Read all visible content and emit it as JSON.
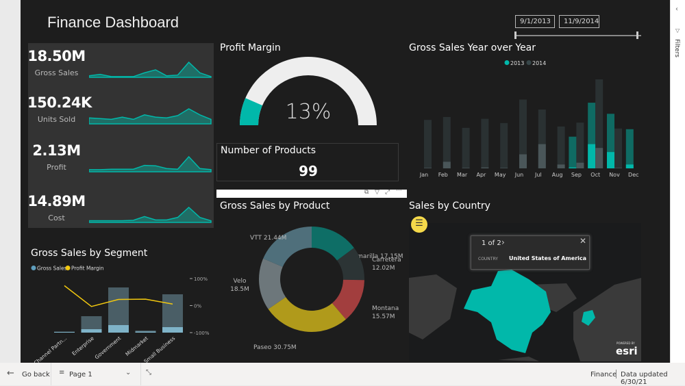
{
  "dashboard": {
    "title": "Finance Dashboard"
  },
  "date_slicer": {
    "start": "9/1/2013",
    "end": "11/9/2014"
  },
  "kpis": [
    {
      "value": "18.50M",
      "label": "Gross Sales",
      "trend": [
        1,
        2,
        0.5,
        0.5,
        0.5,
        3,
        5,
        1,
        1.5,
        10,
        3,
        0.5
      ]
    },
    {
      "value": "150.24K",
      "label": "Units Sold",
      "trend": [
        4,
        3.5,
        3,
        4.5,
        3,
        6,
        4.5,
        4,
        5.5,
        10,
        6,
        3
      ]
    },
    {
      "value": "2.13M",
      "label": "Profit",
      "trend": [
        1,
        1,
        1.2,
        1.2,
        1.2,
        3,
        2.8,
        1.5,
        1.2,
        7,
        1.5,
        1
      ]
    },
    {
      "value": "14.89M",
      "label": "Cost",
      "trend": [
        1,
        1,
        1,
        1,
        1.3,
        3.5,
        1.5,
        1.5,
        3,
        9,
        3,
        1
      ]
    }
  ],
  "profit_margin": {
    "title": "Profit Margin",
    "value": "13%",
    "fraction": 0.13
  },
  "products": {
    "title": "Number of Products",
    "value": "99"
  },
  "colors": {
    "accent": "#01b8aa",
    "yellow": "#f2c80f",
    "background": "#1d1d1d"
  },
  "chart_data": [
    {
      "type": "bar",
      "title": "Gross Sales Year over Year",
      "categories": [
        "Jan",
        "Feb",
        "Mar",
        "Apr",
        "May",
        "Jun",
        "Jul",
        "Aug",
        "Sep",
        "Oct",
        "Nov",
        "Dec"
      ],
      "series": [
        {
          "name": "2013",
          "values": [
            0,
            0,
            0,
            0,
            0,
            0,
            0,
            0,
            140,
            290,
            241,
            173
          ],
          "highlighted": [
            0,
            0,
            0,
            0,
            0,
            0,
            0,
            0,
            4,
            107,
            72,
            17
          ],
          "color": "#01b8aa"
        },
        {
          "name": "2014",
          "values": [
            214,
            227,
            179,
            219,
            200,
            304,
            260,
            185,
            202,
            393,
            176,
            0
          ],
          "highlighted": [
            2,
            29,
            2,
            4,
            2,
            62,
            107,
            17,
            25,
            90,
            2,
            0
          ],
          "color": "#374649"
        }
      ],
      "legend": "top-center",
      "grid": false
    },
    {
      "type": "bar+line",
      "title": "Gross Sales by Segment",
      "categories": [
        "Channel Partn...",
        "Enterprise",
        "Government",
        "Midmarket",
        "Small Business"
      ],
      "series": [
        {
          "name": "Gross Sales",
          "values": [
            1.5,
            24,
            66,
            3,
            56
          ],
          "highlighted": [
            1,
            5,
            11,
            1.5,
            8
          ],
          "color": "#5f9ebd"
        },
        {
          "name": "Profit Margin",
          "values": [
            75,
            -2,
            24,
            25,
            7
          ],
          "color": "#f2c80f",
          "axis": "right"
        }
      ],
      "y2_ticks": [
        "100%",
        "0%",
        "-100%"
      ],
      "y2lim": [
        -100,
        100
      ],
      "legend": "top-left"
    },
    {
      "type": "donut",
      "title": "Gross Sales by Product",
      "slices": [
        {
          "name": "Amarilla",
          "value": 17.15,
          "label": "17.15M",
          "color": "#0e6e66"
        },
        {
          "name": "Carretera",
          "value": 12.02,
          "label": "12.02M",
          "color": "#2c3435"
        },
        {
          "name": "Montana",
          "value": 15.57,
          "label": "15.57M",
          "color": "#a23e3e"
        },
        {
          "name": "Paseo",
          "value": 30.75,
          "label": "30.75M",
          "color": "#b09a1b"
        },
        {
          "name": "Velo",
          "value": 18.5,
          "label": "18.5M",
          "color": "#6d777b"
        },
        {
          "name": "VTT",
          "value": 21.44,
          "label": "21.44M",
          "color": "#4f6f7b"
        }
      ]
    }
  ],
  "map": {
    "title": "Sales by Country",
    "popup_pager": "1 of 2",
    "popup_field": "COUNTRY",
    "popup_value": "United States of America",
    "brand": "esri",
    "brand_small": "POWERED BY"
  },
  "filters_pane": {
    "label": "Filters"
  },
  "bottom": {
    "go_back": "Go back",
    "page": "Page 1",
    "workspace": "Finance",
    "updated": "Data updated 6/30/21"
  }
}
